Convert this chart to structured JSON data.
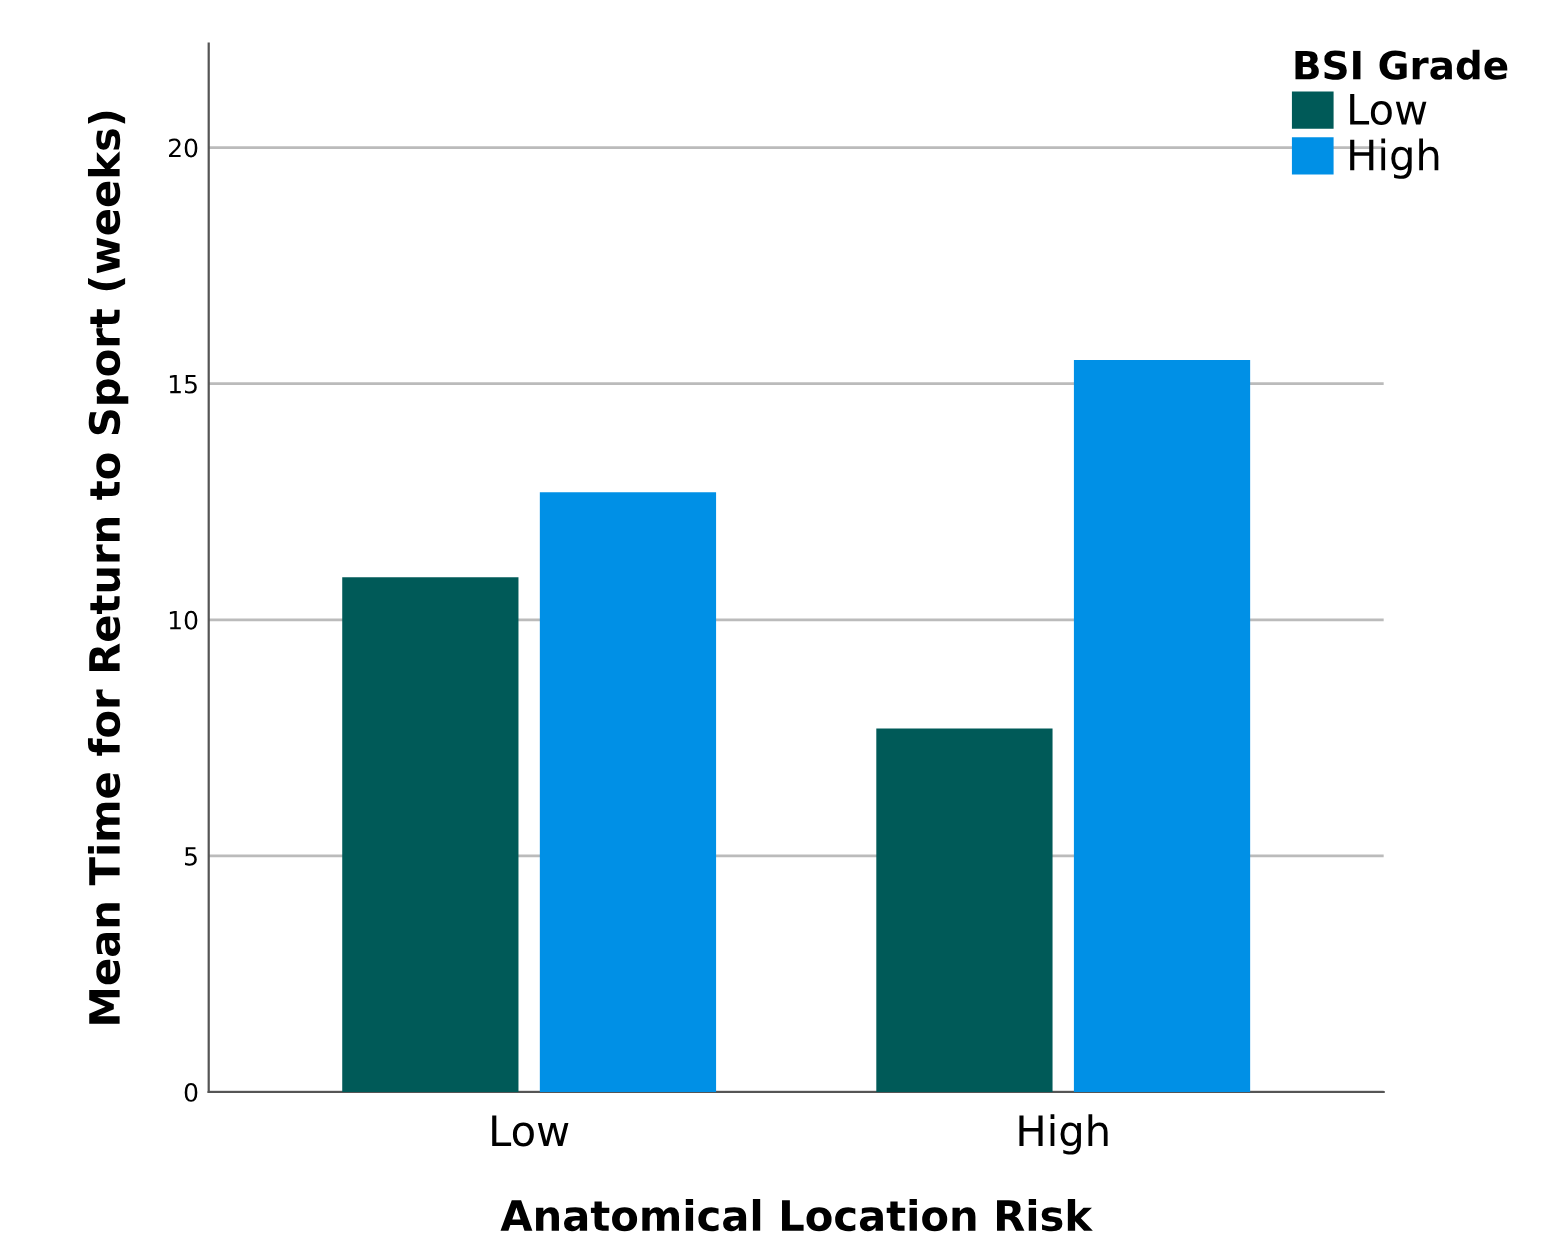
{
  "chart_data": {
    "type": "bar",
    "xlabel": "Anatomical Location Risk",
    "ylabel": "Mean Time for Return to Sport (weeks)",
    "legend_title": "BSI Grade",
    "categories": [
      "Low",
      "High"
    ],
    "series": [
      {
        "name": "Low",
        "color": "#005a58",
        "values": [
          10.9,
          7.7
        ]
      },
      {
        "name": "High",
        "color": "#0090e6",
        "values": [
          12.7,
          15.5
        ]
      }
    ],
    "ylim": [
      0,
      22.2
    ],
    "yticks": [
      0,
      5,
      10,
      15,
      20
    ],
    "grid": "y",
    "legend": "top right"
  }
}
